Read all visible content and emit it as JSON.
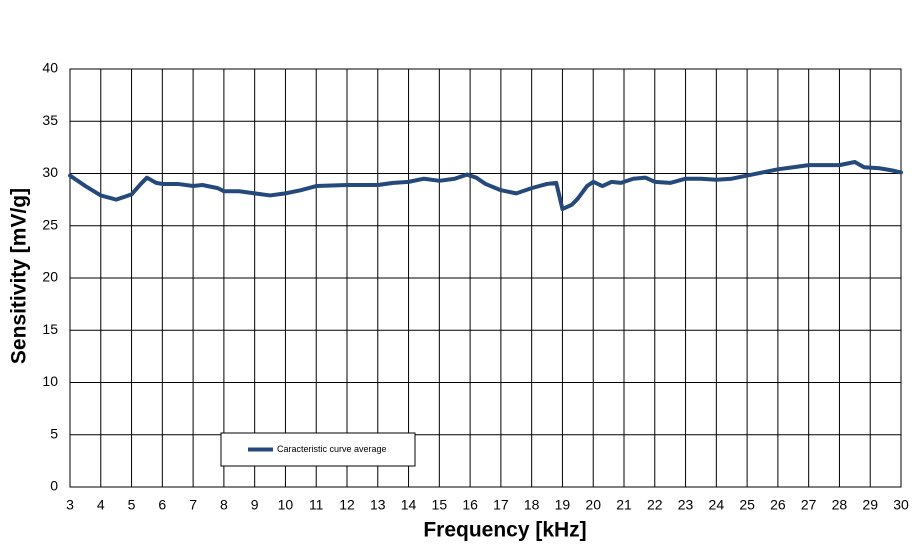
{
  "chart_data": {
    "type": "line",
    "x_label": "Frequency [kHz]",
    "y_label": "Sensitivity [mV/g]",
    "x": [
      3,
      3.5,
      4,
      4.5,
      5,
      5.3,
      5.5,
      5.8,
      6,
      6.5,
      7,
      7.3,
      7.8,
      8,
      8.5,
      9,
      9.5,
      10,
      10.5,
      11,
      12,
      13,
      13.5,
      14,
      14.5,
      15,
      15.5,
      15.9,
      16.2,
      16.5,
      17,
      17.5,
      18,
      18.5,
      18.8,
      19,
      19.3,
      19.5,
      19.8,
      20,
      20.3,
      20.6,
      20.9,
      21.3,
      21.7,
      22,
      22.5,
      23,
      23.5,
      24,
      24.5,
      25,
      25.5,
      26,
      26.5,
      27,
      27.5,
      28,
      28.5,
      28.8,
      29.3,
      29.7,
      30
    ],
    "series": [
      {
        "name": "Caracteristic curve average",
        "color": "#24497a",
        "values": [
          29.8,
          28.8,
          27.9,
          27.5,
          28.0,
          29.0,
          29.6,
          29.1,
          29.0,
          29.0,
          28.8,
          28.9,
          28.6,
          28.3,
          28.3,
          28.1,
          27.9,
          28.1,
          28.4,
          28.8,
          28.9,
          28.9,
          29.1,
          29.2,
          29.5,
          29.3,
          29.5,
          29.9,
          29.6,
          29.0,
          28.4,
          28.1,
          28.6,
          29.0,
          29.1,
          26.6,
          27.0,
          27.6,
          28.8,
          29.2,
          28.8,
          29.2,
          29.1,
          29.5,
          29.6,
          29.2,
          29.1,
          29.5,
          29.5,
          29.4,
          29.5,
          29.8,
          30.1,
          30.4,
          30.6,
          30.8,
          30.8,
          30.8,
          31.1,
          30.6,
          30.5,
          30.3,
          30.1
        ]
      }
    ],
    "xlim": [
      3,
      30
    ],
    "xticks": [
      3,
      4,
      5,
      6,
      7,
      8,
      9,
      10,
      11,
      12,
      13,
      14,
      15,
      16,
      17,
      18,
      19,
      20,
      21,
      22,
      23,
      24,
      25,
      26,
      27,
      28,
      29,
      30
    ],
    "ylim": [
      0,
      40
    ],
    "yticks": [
      0,
      5,
      10,
      15,
      20,
      25,
      30,
      35,
      40
    ],
    "grid": true,
    "legend": "lower left"
  }
}
